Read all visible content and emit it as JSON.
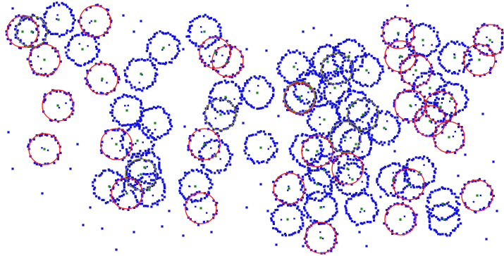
{
  "figure": {
    "background": "#ffffff",
    "colors": {
      "points": "#1010e0",
      "centers": "#1a8a1a",
      "red_circles": "#ff1a1a",
      "olive_circles": "#8a8a1a"
    },
    "legend": [],
    "caption": ""
  },
  "clusters": [
    [
      32,
      45,
      "red"
    ],
    [
      83,
      28,
      "blue"
    ],
    [
      135,
      30,
      "red"
    ],
    [
      45,
      45,
      "olive"
    ],
    [
      63,
      85,
      "red"
    ],
    [
      117,
      70,
      "blue"
    ],
    [
      145,
      112,
      "red"
    ],
    [
      200,
      105,
      "blue"
    ],
    [
      232,
      68,
      "blue"
    ],
    [
      290,
      45,
      "blue"
    ],
    [
      305,
      75,
      "red"
    ],
    [
      323,
      87,
      "red"
    ],
    [
      82,
      150,
      "red"
    ],
    [
      180,
      157,
      "blue"
    ],
    [
      220,
      175,
      "blue"
    ],
    [
      165,
      205,
      "red"
    ],
    [
      195,
      200,
      "blue"
    ],
    [
      63,
      212,
      "red"
    ],
    [
      320,
      138,
      "blue"
    ],
    [
      313,
      163,
      "olive"
    ],
    [
      365,
      132,
      "blue"
    ],
    [
      290,
      205,
      "red"
    ],
    [
      306,
      222,
      "blue"
    ],
    [
      370,
      210,
      "blue"
    ],
    [
      205,
      238,
      "blue"
    ],
    [
      200,
      248,
      "olive"
    ],
    [
      155,
      265,
      "blue"
    ],
    [
      180,
      275,
      "red"
    ],
    [
      212,
      270,
      "blue"
    ],
    [
      277,
      265,
      "blue"
    ],
    [
      285,
      296,
      "red"
    ],
    [
      417,
      95,
      "blue"
    ],
    [
      440,
      125,
      "blue"
    ],
    [
      425,
      140,
      "red"
    ],
    [
      425,
      138,
      "olive"
    ],
    [
      465,
      88,
      "blue"
    ],
    [
      478,
      98,
      "olive"
    ],
    [
      495,
      80,
      "blue"
    ],
    [
      475,
      125,
      "blue"
    ],
    [
      520,
      100,
      "blue"
    ],
    [
      565,
      47,
      "red"
    ],
    [
      600,
      57,
      "blue"
    ],
    [
      568,
      80,
      "red"
    ],
    [
      590,
      100,
      "red"
    ],
    [
      645,
      82,
      "blue"
    ],
    [
      680,
      85,
      "red"
    ],
    [
      695,
      57,
      "red"
    ],
    [
      582,
      150,
      "red"
    ],
    [
      610,
      125,
      "blue"
    ],
    [
      625,
      152,
      "red"
    ],
    [
      640,
      140,
      "blue"
    ],
    [
      610,
      172,
      "red"
    ],
    [
      637,
      195,
      "red"
    ],
    [
      460,
      170,
      "blue"
    ],
    [
      500,
      150,
      "blue"
    ],
    [
      515,
      163,
      "olive"
    ],
    [
      545,
      182,
      "blue"
    ],
    [
      490,
      195,
      "olive"
    ],
    [
      505,
      205,
      "blue"
    ],
    [
      450,
      215,
      "red"
    ],
    [
      435,
      213,
      "blue"
    ],
    [
      460,
      242,
      "blue"
    ],
    [
      493,
      240,
      "red"
    ],
    [
      500,
      255,
      "blue"
    ],
    [
      410,
      268,
      "red"
    ],
    [
      450,
      262,
      "blue"
    ],
    [
      455,
      295,
      "blue"
    ],
    [
      513,
      297,
      "blue"
    ],
    [
      558,
      255,
      "blue"
    ],
    [
      580,
      262,
      "red"
    ],
    [
      595,
      245,
      "blue"
    ],
    [
      568,
      312,
      "red"
    ],
    [
      628,
      290,
      "blue"
    ],
    [
      630,
      312,
      "blue"
    ],
    [
      677,
      278,
      "red"
    ],
    [
      408,
      312,
      "blue"
    ],
    [
      455,
      338,
      "red"
    ]
  ],
  "noise": [
    [
      18,
      12
    ],
    [
      175,
      22
    ],
    [
      190,
      45
    ],
    [
      200,
      30
    ],
    [
      260,
      70
    ],
    [
      265,
      52
    ],
    [
      350,
      70
    ],
    [
      378,
      72
    ],
    [
      430,
      45
    ],
    [
      445,
      40
    ],
    [
      470,
      50
    ],
    [
      545,
      32
    ],
    [
      578,
      8
    ],
    [
      12,
      188
    ],
    [
      18,
      240
    ],
    [
      110,
      205
    ],
    [
      100,
      240
    ],
    [
      60,
      275
    ],
    [
      128,
      295
    ],
    [
      118,
      320
    ],
    [
      145,
      325
    ],
    [
      190,
      330
    ],
    [
      230,
      322
    ],
    [
      240,
      300
    ],
    [
      260,
      335
    ],
    [
      300,
      330
    ],
    [
      350,
      295
    ],
    [
      370,
      262
    ],
    [
      380,
      300
    ],
    [
      392,
      348
    ],
    [
      430,
      350
    ],
    [
      520,
      350
    ],
    [
      530,
      308
    ],
    [
      540,
      280
    ],
    [
      660,
      220
    ],
    [
      700,
      230
    ],
    [
      705,
      300
    ],
    [
      690,
      340
    ],
    [
      165,
      355
    ],
    [
      262,
      180
    ],
    [
      345,
      175
    ],
    [
      395,
      165
    ],
    [
      560,
      215
    ],
    [
      650,
      250
    ],
    [
      685,
      162
    ],
    [
      510,
      330
    ]
  ]
}
